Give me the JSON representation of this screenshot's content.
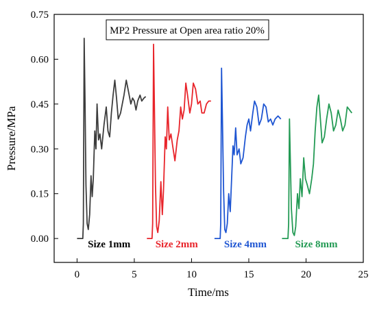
{
  "chart_data": {
    "type": "line",
    "title": "MP2 Pressure at Open area ratio 20%",
    "xlabel": "Time/ms",
    "ylabel": "Pressure/MPa",
    "xlim": [
      -2,
      25
    ],
    "ylim": [
      -0.08,
      0.75
    ],
    "x_ticks": [
      0,
      5,
      10,
      15,
      20,
      25
    ],
    "y_ticks": [
      0.0,
      0.15,
      0.3,
      0.45,
      0.6,
      0.75
    ],
    "x_tick_labels": [
      "0",
      "5",
      "10",
      "15",
      "20",
      "25"
    ],
    "y_tick_labels": [
      "0.00",
      "0.15",
      "0.30",
      "0.45",
      "0.60",
      "0.75"
    ],
    "grid": false,
    "legend": "none",
    "series": [
      {
        "name": "Size 1mm",
        "color": "#3c3c3c",
        "points": [
          [
            0.0,
            0.0
          ],
          [
            0.5,
            0.0
          ],
          [
            0.55,
            0.05
          ],
          [
            0.62,
            0.67
          ],
          [
            0.7,
            0.45
          ],
          [
            0.78,
            0.18
          ],
          [
            0.88,
            0.05
          ],
          [
            0.98,
            0.03
          ],
          [
            1.1,
            0.08
          ],
          [
            1.22,
            0.21
          ],
          [
            1.32,
            0.14
          ],
          [
            1.42,
            0.2
          ],
          [
            1.55,
            0.36
          ],
          [
            1.65,
            0.3
          ],
          [
            1.75,
            0.45
          ],
          [
            1.88,
            0.33
          ],
          [
            2.0,
            0.35
          ],
          [
            2.15,
            0.3
          ],
          [
            2.35,
            0.38
          ],
          [
            2.55,
            0.44
          ],
          [
            2.7,
            0.36
          ],
          [
            2.85,
            0.34
          ],
          [
            3.0,
            0.42
          ],
          [
            3.15,
            0.48
          ],
          [
            3.3,
            0.53
          ],
          [
            3.45,
            0.47
          ],
          [
            3.6,
            0.4
          ],
          [
            3.8,
            0.42
          ],
          [
            3.95,
            0.45
          ],
          [
            4.1,
            0.48
          ],
          [
            4.3,
            0.53
          ],
          [
            4.5,
            0.49
          ],
          [
            4.7,
            0.45
          ],
          [
            4.85,
            0.47
          ],
          [
            5.0,
            0.46
          ],
          [
            5.15,
            0.43
          ],
          [
            5.3,
            0.46
          ],
          [
            5.5,
            0.48
          ],
          [
            5.65,
            0.46
          ],
          [
            5.85,
            0.47
          ],
          [
            6.0,
            0.475
          ]
        ]
      },
      {
        "name": "Size 2mm",
        "color": "#e8242a",
        "points": [
          [
            6.1,
            0.0
          ],
          [
            6.55,
            0.0
          ],
          [
            6.6,
            0.05
          ],
          [
            6.68,
            0.65
          ],
          [
            6.75,
            0.45
          ],
          [
            6.85,
            0.18
          ],
          [
            6.95,
            0.04
          ],
          [
            7.05,
            0.02
          ],
          [
            7.18,
            0.06
          ],
          [
            7.32,
            0.19
          ],
          [
            7.45,
            0.08
          ],
          [
            7.55,
            0.16
          ],
          [
            7.7,
            0.34
          ],
          [
            7.8,
            0.3
          ],
          [
            7.92,
            0.44
          ],
          [
            8.05,
            0.33
          ],
          [
            8.2,
            0.35
          ],
          [
            8.35,
            0.31
          ],
          [
            8.55,
            0.26
          ],
          [
            8.75,
            0.33
          ],
          [
            8.9,
            0.36
          ],
          [
            9.05,
            0.44
          ],
          [
            9.2,
            0.4
          ],
          [
            9.35,
            0.43
          ],
          [
            9.5,
            0.52
          ],
          [
            9.65,
            0.48
          ],
          [
            9.85,
            0.42
          ],
          [
            10.0,
            0.45
          ],
          [
            10.15,
            0.52
          ],
          [
            10.35,
            0.5
          ],
          [
            10.55,
            0.45
          ],
          [
            10.75,
            0.46
          ],
          [
            10.9,
            0.42
          ],
          [
            11.1,
            0.42
          ],
          [
            11.3,
            0.45
          ],
          [
            11.5,
            0.46
          ],
          [
            11.7,
            0.46
          ]
        ]
      },
      {
        "name": "Size 4mm",
        "color": "#1e55d2",
        "points": [
          [
            12.0,
            0.0
          ],
          [
            12.5,
            0.0
          ],
          [
            12.55,
            0.05
          ],
          [
            12.62,
            0.57
          ],
          [
            12.7,
            0.4
          ],
          [
            12.8,
            0.16
          ],
          [
            12.9,
            0.03
          ],
          [
            13.0,
            0.02
          ],
          [
            13.12,
            0.05
          ],
          [
            13.25,
            0.15
          ],
          [
            13.38,
            0.09
          ],
          [
            13.5,
            0.2
          ],
          [
            13.62,
            0.31
          ],
          [
            13.72,
            0.28
          ],
          [
            13.85,
            0.37
          ],
          [
            13.98,
            0.28
          ],
          [
            14.15,
            0.3
          ],
          [
            14.3,
            0.25
          ],
          [
            14.5,
            0.27
          ],
          [
            14.7,
            0.34
          ],
          [
            14.85,
            0.38
          ],
          [
            15.0,
            0.4
          ],
          [
            15.15,
            0.36
          ],
          [
            15.35,
            0.42
          ],
          [
            15.5,
            0.46
          ],
          [
            15.7,
            0.44
          ],
          [
            15.9,
            0.38
          ],
          [
            16.1,
            0.4
          ],
          [
            16.3,
            0.45
          ],
          [
            16.5,
            0.44
          ],
          [
            16.7,
            0.39
          ],
          [
            16.9,
            0.4
          ],
          [
            17.1,
            0.38
          ],
          [
            17.3,
            0.4
          ],
          [
            17.55,
            0.41
          ],
          [
            17.8,
            0.4
          ]
        ]
      },
      {
        "name": "Size 8mm",
        "color": "#239a54",
        "points": [
          [
            17.9,
            0.0
          ],
          [
            18.42,
            0.0
          ],
          [
            18.48,
            0.05
          ],
          [
            18.55,
            0.4
          ],
          [
            18.62,
            0.28
          ],
          [
            18.72,
            0.1
          ],
          [
            18.85,
            0.02
          ],
          [
            18.98,
            0.01
          ],
          [
            19.1,
            0.04
          ],
          [
            19.25,
            0.15
          ],
          [
            19.38,
            0.1
          ],
          [
            19.5,
            0.2
          ],
          [
            19.65,
            0.14
          ],
          [
            19.8,
            0.27
          ],
          [
            19.95,
            0.2
          ],
          [
            20.1,
            0.18
          ],
          [
            20.3,
            0.15
          ],
          [
            20.5,
            0.2
          ],
          [
            20.65,
            0.25
          ],
          [
            20.8,
            0.36
          ],
          [
            20.95,
            0.44
          ],
          [
            21.1,
            0.48
          ],
          [
            21.25,
            0.4
          ],
          [
            21.4,
            0.32
          ],
          [
            21.6,
            0.34
          ],
          [
            21.8,
            0.4
          ],
          [
            22.0,
            0.45
          ],
          [
            22.2,
            0.42
          ],
          [
            22.4,
            0.36
          ],
          [
            22.6,
            0.38
          ],
          [
            22.8,
            0.43
          ],
          [
            23.0,
            0.4
          ],
          [
            23.2,
            0.36
          ],
          [
            23.4,
            0.38
          ],
          [
            23.6,
            0.44
          ],
          [
            23.8,
            0.43
          ],
          [
            24.0,
            0.42
          ]
        ]
      }
    ],
    "annotations": [
      {
        "text": "Size 1mm",
        "x": 2.8,
        "y": -0.03,
        "color": "#000000"
      },
      {
        "text": "Size 2mm",
        "x": 8.7,
        "y": -0.03,
        "color": "#e8242a"
      },
      {
        "text": "Size 4mm",
        "x": 14.7,
        "y": -0.03,
        "color": "#1e55d2"
      },
      {
        "text": "Size 8mm",
        "x": 20.9,
        "y": -0.03,
        "color": "#239a54"
      }
    ]
  }
}
